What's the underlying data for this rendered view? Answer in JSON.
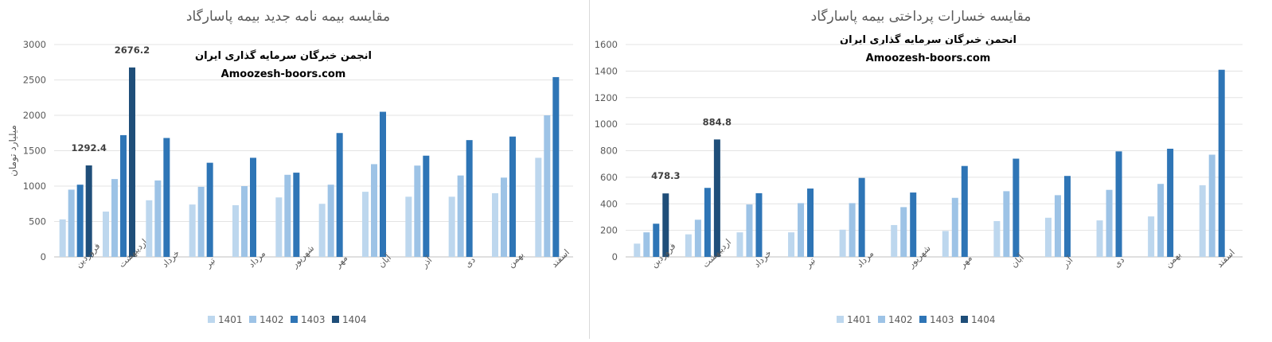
{
  "charts": {
    "left": {
      "watermark": {
        "line1": "انجمن خبرگان سرمایه گذاری ایران",
        "line2": "Amoozesh-boors.com"
      }
    },
    "right": {
      "watermark": {
        "line1": "انجمن خبرگان سرمایه گذاری ایران",
        "line2": "Amoozesh-boors.com"
      }
    }
  },
  "chart_data": [
    {
      "type": "bar",
      "title": "مقایسه بیمه نامه جدید بیمه پاسارگاد",
      "xlabel": "",
      "ylabel": "میلیارد تومان",
      "ylim": [
        0,
        3000
      ],
      "yticks": [
        0,
        500,
        1000,
        1500,
        2000,
        2500,
        3000
      ],
      "grid": true,
      "legend_position": "bottom",
      "categories": [
        "فروردین",
        "اردیبهشت",
        "خرداد",
        "تیر",
        "مرداد",
        "شهریور",
        "مهر",
        "آبان",
        "آذر",
        "دی",
        "بهمن",
        "اسفند"
      ],
      "series": [
        {
          "name": "1401",
          "color": "#bdd7ee",
          "values": [
            530,
            640,
            800,
            740,
            730,
            840,
            750,
            920,
            850,
            850,
            900,
            1400
          ]
        },
        {
          "name": "1402",
          "color": "#9dc3e6",
          "values": [
            950,
            1100,
            1080,
            990,
            1000,
            1160,
            1020,
            1310,
            1290,
            1150,
            1120,
            2000
          ]
        },
        {
          "name": "1403",
          "color": "#2e75b6",
          "values": [
            1020,
            1720,
            1680,
            1330,
            1400,
            1190,
            1750,
            2050,
            1430,
            1650,
            1700,
            2540
          ]
        },
        {
          "name": "1404",
          "color": "#1f4e79",
          "values": [
            1292.4,
            2676.2,
            null,
            null,
            null,
            null,
            null,
            null,
            null,
            null,
            null,
            null
          ]
        }
      ],
      "data_labels": [
        {
          "series": "1404",
          "category": "فروردین",
          "text": "1292.4"
        },
        {
          "series": "1404",
          "category": "اردیبهشت",
          "text": "2676.2"
        }
      ]
    },
    {
      "type": "bar",
      "title": "مقایسه خسارات پرداختی بیمه پاسارگاد",
      "xlabel": "",
      "ylabel": "",
      "ylim": [
        0,
        1600
      ],
      "yticks": [
        0,
        200,
        400,
        600,
        800,
        1000,
        1200,
        1400,
        1600
      ],
      "grid": true,
      "legend_position": "bottom",
      "categories": [
        "فروردین",
        "اردیبهشت",
        "خرداد",
        "تیر",
        "مرداد",
        "شهریور",
        "مهر",
        "آبان",
        "آذر",
        "دی",
        "بهمن",
        "اسفند"
      ],
      "series": [
        {
          "name": "1401",
          "color": "#bdd7ee",
          "values": [
            100,
            170,
            185,
            185,
            205,
            240,
            195,
            270,
            295,
            275,
            305,
            540
          ]
        },
        {
          "name": "1402",
          "color": "#9dc3e6",
          "values": [
            185,
            280,
            395,
            405,
            405,
            375,
            445,
            495,
            465,
            505,
            550,
            770
          ]
        },
        {
          "name": "1403",
          "color": "#2e75b6",
          "values": [
            250,
            520,
            480,
            515,
            595,
            485,
            685,
            740,
            610,
            795,
            815,
            1410
          ]
        },
        {
          "name": "1404",
          "color": "#1f4e79",
          "values": [
            478.3,
            884.8,
            null,
            null,
            null,
            null,
            null,
            null,
            null,
            null,
            null,
            null
          ]
        }
      ],
      "data_labels": [
        {
          "series": "1404",
          "category": "فروردین",
          "text": "478.3"
        },
        {
          "series": "1404",
          "category": "اردیبهشت",
          "text": "884.8"
        }
      ]
    }
  ]
}
